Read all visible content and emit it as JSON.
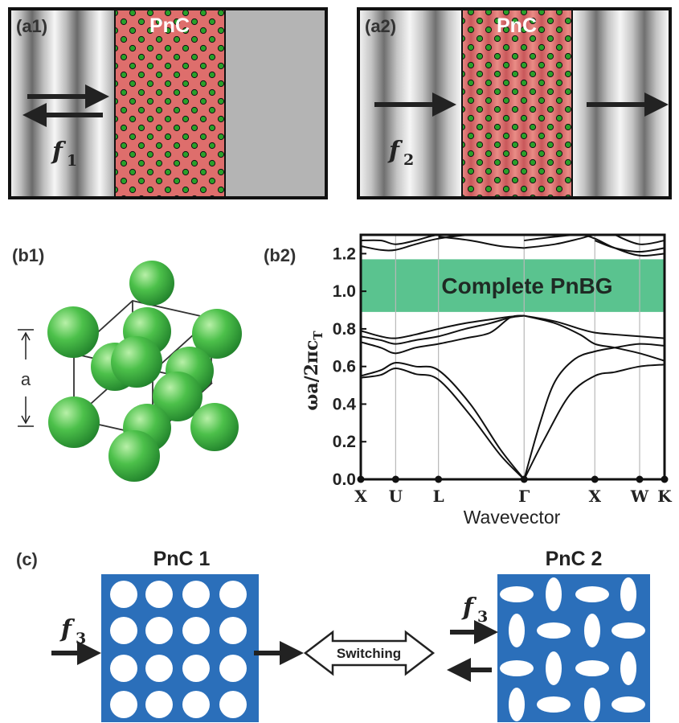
{
  "panels": {
    "a1": {
      "label": "(a1)",
      "crystal_label": "PnC",
      "freq_symbol": "f",
      "freq_sub": "1"
    },
    "a2": {
      "label": "(a2)",
      "crystal_label": "PnC",
      "freq_symbol": "f",
      "freq_sub": "2"
    },
    "b1": {
      "label": "(b1)",
      "lattice_constant": "a"
    },
    "b2": {
      "label": "(b2)"
    },
    "c": {
      "label": "(c)",
      "pnc1_title": "PnC 1",
      "pnc2_title": "PnC 2",
      "switch_label": "Switching",
      "freq_symbol": "f",
      "freq_sub": "3"
    }
  },
  "colors": {
    "pnc_red": "#de6e6c",
    "pnc_inclusion": "#2aa02a",
    "sphere_green": "#3cb64a",
    "band_gap": "#4cbe86",
    "pnc_blue": "#2b6fba"
  },
  "chart_data": {
    "type": "line",
    "title": "",
    "xlabel": "Wavevector",
    "ylabel_main": "ωa/2πc",
    "ylabel_sub": "T",
    "ylim": [
      0,
      1.3
    ],
    "yticks": [
      "0.0",
      "0.2",
      "0.4",
      "0.6",
      "0.8",
      "1.0",
      "1.2"
    ],
    "k_labels": [
      "X",
      "U",
      "L",
      "Γ",
      "X",
      "W",
      "K"
    ],
    "k_positions": [
      0,
      0.35,
      0.78,
      1.64,
      2.35,
      2.8,
      3.05
    ],
    "band_gap": {
      "label": "Complete PnBG",
      "y_range": [
        0.89,
        1.17
      ]
    },
    "series": [
      {
        "x": [
          0,
          0.2,
          0.35,
          0.55,
          0.78,
          1.1,
          1.4,
          1.64
        ],
        "y": [
          0.54,
          0.555,
          0.59,
          0.56,
          0.53,
          0.34,
          0.13,
          0
        ]
      },
      {
        "x": [
          0,
          0.2,
          0.35,
          0.55,
          0.78,
          1.1,
          1.4,
          1.64
        ],
        "y": [
          0.55,
          0.58,
          0.62,
          0.6,
          0.58,
          0.4,
          0.16,
          0
        ]
      },
      {
        "x": [
          0,
          0.2,
          0.35,
          0.55,
          0.78,
          1.05,
          1.3,
          1.5,
          1.64
        ],
        "y": [
          0.73,
          0.7,
          0.67,
          0.7,
          0.72,
          0.75,
          0.78,
          0.86,
          0.87
        ]
      },
      {
        "x": [
          0,
          0.2,
          0.35,
          0.55,
          0.78,
          1.05,
          1.3,
          1.5,
          1.64
        ],
        "y": [
          0.76,
          0.74,
          0.72,
          0.74,
          0.76,
          0.8,
          0.83,
          0.86,
          0.87
        ]
      },
      {
        "x": [
          0,
          0.2,
          0.35,
          0.55,
          0.78,
          1.05,
          1.3,
          1.5,
          1.64
        ],
        "y": [
          0.79,
          0.76,
          0.75,
          0.77,
          0.8,
          0.83,
          0.85,
          0.865,
          0.87
        ]
      },
      {
        "x": [
          1.64,
          1.85,
          2.1,
          2.35,
          2.55,
          2.8,
          3.05
        ],
        "y": [
          0,
          0.22,
          0.45,
          0.55,
          0.57,
          0.6,
          0.61
        ]
      },
      {
        "x": [
          1.64,
          1.8,
          1.95,
          2.15,
          2.35,
          2.55,
          2.8,
          3.05
        ],
        "y": [
          0,
          0.3,
          0.52,
          0.64,
          0.68,
          0.7,
          0.72,
          0.71
        ]
      },
      {
        "x": [
          1.64,
          1.95,
          2.2,
          2.35,
          2.55,
          2.8,
          3.05
        ],
        "y": [
          0.87,
          0.83,
          0.77,
          0.72,
          0.7,
          0.67,
          0.63
        ]
      },
      {
        "x": [
          1.64,
          1.95,
          2.2,
          2.35,
          2.55,
          2.8,
          3.05
        ],
        "y": [
          0.87,
          0.84,
          0.8,
          0.78,
          0.77,
          0.76,
          0.75
        ]
      },
      {
        "x": [
          0,
          0.2,
          0.35,
          0.55,
          0.78,
          1.1,
          1.4,
          1.64
        ],
        "y": [
          1.24,
          1.22,
          1.22,
          1.25,
          1.28,
          1.3,
          1.3,
          1.3
        ]
      },
      {
        "x": [
          0,
          0.2,
          0.35,
          0.55,
          0.78,
          1.1,
          1.4,
          1.64
        ],
        "y": [
          1.27,
          1.27,
          1.25,
          1.27,
          1.3,
          1.3,
          1.3,
          1.3
        ]
      },
      {
        "x": [
          0.78,
          1.1,
          1.4,
          1.64
        ],
        "y": [
          1.29,
          1.27,
          1.24,
          1.23
        ]
      },
      {
        "x": [
          1.64,
          1.95,
          2.2,
          2.35,
          2.55,
          2.8,
          3.05
        ],
        "y": [
          1.23,
          1.25,
          1.28,
          1.3,
          1.3,
          1.3,
          1.3
        ]
      },
      {
        "x": [
          1.64,
          1.95,
          2.2,
          2.35,
          2.55,
          2.8,
          3.05
        ],
        "y": [
          1.27,
          1.29,
          1.3,
          1.28,
          1.23,
          1.19,
          1.2
        ]
      },
      {
        "x": [
          2.35,
          2.55,
          2.8,
          3.05
        ],
        "y": [
          1.27,
          1.23,
          1.21,
          1.23
        ]
      },
      {
        "x": [
          2.55,
          2.8,
          3.05
        ],
        "y": [
          1.3,
          1.25,
          1.27
        ]
      }
    ]
  }
}
